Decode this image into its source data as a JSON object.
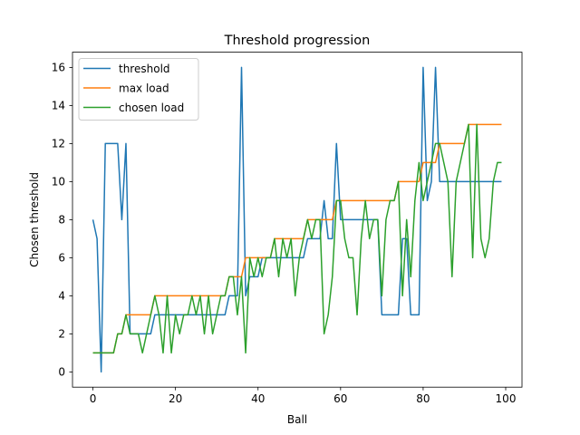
{
  "chart_data": {
    "type": "line",
    "title": "Threshold progression",
    "xlabel": "Ball",
    "ylabel": "Chosen threshold",
    "xlim": [
      -4.95,
      103.95
    ],
    "ylim": [
      -0.8,
      16.8
    ],
    "xticks": [
      0,
      20,
      40,
      60,
      80,
      100
    ],
    "yticks": [
      0,
      2,
      4,
      6,
      8,
      10,
      12,
      14,
      16
    ],
    "grid": false,
    "legend_position": "top-left",
    "x": [
      0,
      1,
      2,
      3,
      4,
      5,
      6,
      7,
      8,
      9,
      10,
      11,
      12,
      13,
      14,
      15,
      16,
      17,
      18,
      19,
      20,
      21,
      22,
      23,
      24,
      25,
      26,
      27,
      28,
      29,
      30,
      31,
      32,
      33,
      34,
      35,
      36,
      37,
      38,
      39,
      40,
      41,
      42,
      43,
      44,
      45,
      46,
      47,
      48,
      49,
      50,
      51,
      52,
      53,
      54,
      55,
      56,
      57,
      58,
      59,
      60,
      61,
      62,
      63,
      64,
      65,
      66,
      67,
      68,
      69,
      70,
      71,
      72,
      73,
      74,
      75,
      76,
      77,
      78,
      79,
      80,
      81,
      82,
      83,
      84,
      85,
      86,
      87,
      88,
      89,
      90,
      91,
      92,
      93,
      94,
      95,
      96,
      97,
      98,
      99
    ],
    "series": [
      {
        "name": "threshold",
        "color": "#1f77b4",
        "values": [
          8,
          7,
          0,
          12,
          12,
          12,
          12,
          8,
          12,
          2,
          2,
          2,
          2,
          2,
          2,
          3,
          3,
          3,
          3,
          3,
          3,
          3,
          3,
          3,
          3,
          3,
          3,
          3,
          3,
          3,
          3,
          3,
          3,
          4,
          4,
          4,
          16,
          4,
          5,
          5,
          5,
          6,
          6,
          6,
          6,
          6,
          6,
          6,
          6,
          6,
          6,
          6,
          7,
          7,
          7,
          7,
          9,
          7,
          7,
          12,
          8,
          8,
          8,
          8,
          8,
          8,
          8,
          8,
          8,
          8,
          3,
          3,
          3,
          3,
          3,
          7,
          7,
          3,
          3,
          3,
          16,
          9,
          10,
          16,
          10,
          10,
          10,
          10,
          10,
          10,
          10,
          10,
          10,
          10,
          10,
          10,
          10,
          10,
          10,
          10
        ]
      },
      {
        "name": "max load",
        "color": "#ff7f0e",
        "values": [
          1,
          1,
          1,
          1,
          1,
          1,
          2,
          2,
          3,
          3,
          3,
          3,
          3,
          3,
          3,
          4,
          4,
          4,
          4,
          4,
          4,
          4,
          4,
          4,
          4,
          4,
          4,
          4,
          4,
          4,
          4,
          4,
          4,
          5,
          5,
          5,
          5,
          6,
          6,
          6,
          6,
          6,
          6,
          6,
          7,
          7,
          7,
          7,
          7,
          7,
          7,
          7,
          8,
          8,
          8,
          8,
          8,
          8,
          8,
          9,
          9,
          9,
          9,
          9,
          9,
          9,
          9,
          9,
          9,
          9,
          9,
          9,
          9,
          9,
          10,
          10,
          10,
          10,
          10,
          10,
          11,
          11,
          11,
          11,
          12,
          12,
          12,
          12,
          12,
          12,
          12,
          13,
          13,
          13,
          13,
          13,
          13,
          13,
          13,
          13
        ]
      },
      {
        "name": "chosen load",
        "color": "#2ca02c",
        "values": [
          1,
          1,
          1,
          1,
          1,
          1,
          2,
          2,
          3,
          2,
          2,
          2,
          1,
          2,
          3,
          4,
          3,
          1,
          4,
          1,
          3,
          2,
          3,
          3,
          4,
          3,
          4,
          2,
          4,
          2,
          3,
          4,
          4,
          5,
          5,
          3,
          5,
          1,
          6,
          5,
          6,
          5,
          6,
          6,
          7,
          5,
          7,
          6,
          7,
          4,
          6,
          7,
          8,
          7,
          8,
          8,
          2,
          3,
          5,
          9,
          9,
          7,
          6,
          6,
          3,
          7,
          9,
          7,
          8,
          8,
          4,
          8,
          9,
          9,
          10,
          4,
          8,
          5,
          9,
          11,
          9,
          10,
          11,
          12,
          12,
          11,
          10,
          5,
          10,
          11,
          12,
          13,
          6,
          13,
          7,
          6,
          7,
          10,
          11,
          11
        ]
      }
    ]
  }
}
